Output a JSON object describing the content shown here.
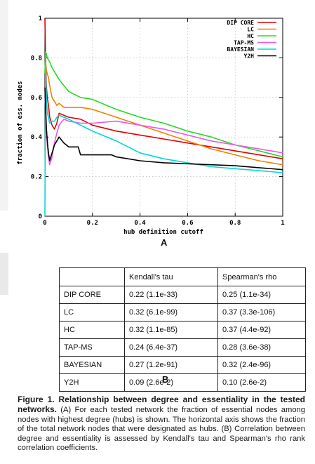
{
  "chart_data": {
    "type": "line",
    "title": "",
    "xlabel": "hub definition cutoff",
    "ylabel": "fraction of ess. nodes",
    "xlim": [
      0,
      1
    ],
    "ylim": [
      0,
      1
    ],
    "xticks": [
      "0",
      "0.2",
      "0.4",
      "0.6",
      "0.8",
      "1"
    ],
    "yticks": [
      "0",
      "0.2",
      "0.4",
      "0.6",
      "0.8",
      "1"
    ],
    "grid": true,
    "legend_position": "top-right",
    "series": [
      {
        "name": "DIP CORE",
        "color": "#e00000",
        "x": [
          0,
          0.003,
          0.006,
          0.01,
          0.015,
          0.02,
          0.03,
          0.04,
          0.05,
          0.06,
          0.08,
          0.1,
          0.15,
          0.2,
          0.3,
          0.4,
          0.5,
          0.6,
          0.7,
          0.8,
          0.9,
          1.0
        ],
        "y": [
          1.0,
          0.8,
          0.66,
          0.6,
          0.56,
          0.5,
          0.46,
          0.44,
          0.47,
          0.52,
          0.51,
          0.5,
          0.49,
          0.46,
          0.43,
          0.41,
          0.39,
          0.37,
          0.35,
          0.33,
          0.31,
          0.29
        ]
      },
      {
        "name": "LC",
        "color": "#f08000",
        "x": [
          0,
          0.003,
          0.006,
          0.01,
          0.015,
          0.02,
          0.03,
          0.04,
          0.05,
          0.06,
          0.08,
          0.1,
          0.15,
          0.2,
          0.3,
          0.4,
          0.5,
          0.6,
          0.7,
          0.8,
          0.9,
          1.0
        ],
        "y": [
          0.72,
          0.78,
          0.74,
          0.72,
          0.7,
          0.66,
          0.6,
          0.58,
          0.56,
          0.57,
          0.55,
          0.55,
          0.55,
          0.54,
          0.5,
          0.46,
          0.42,
          0.38,
          0.34,
          0.31,
          0.28,
          0.26
        ]
      },
      {
        "name": "HC",
        "color": "#22dd22",
        "x": [
          0,
          0.003,
          0.006,
          0.01,
          0.015,
          0.02,
          0.03,
          0.04,
          0.05,
          0.06,
          0.08,
          0.1,
          0.15,
          0.2,
          0.3,
          0.4,
          0.5,
          0.6,
          0.7,
          0.8,
          0.9,
          1.0
        ],
        "y": [
          0.72,
          0.83,
          0.82,
          0.8,
          0.79,
          0.78,
          0.75,
          0.73,
          0.71,
          0.69,
          0.66,
          0.63,
          0.6,
          0.59,
          0.54,
          0.5,
          0.47,
          0.43,
          0.4,
          0.36,
          0.33,
          0.3
        ]
      },
      {
        "name": "TAP-MS",
        "color": "#ee55ee",
        "x": [
          0,
          0.003,
          0.006,
          0.01,
          0.015,
          0.02,
          0.03,
          0.04,
          0.05,
          0.06,
          0.08,
          0.1,
          0.15,
          0.2,
          0.3,
          0.4,
          0.5,
          0.6,
          0.7,
          0.8,
          0.9,
          1.0
        ],
        "y": [
          0.6,
          0.55,
          0.45,
          0.36,
          0.3,
          0.26,
          0.3,
          0.37,
          0.42,
          0.46,
          0.49,
          0.48,
          0.47,
          0.47,
          0.48,
          0.46,
          0.44,
          0.41,
          0.38,
          0.36,
          0.34,
          0.32
        ]
      },
      {
        "name": "BAYESIAN",
        "color": "#00d8d8",
        "x": [
          0,
          0.003,
          0.006,
          0.01,
          0.015,
          0.02,
          0.03,
          0.04,
          0.05,
          0.06,
          0.08,
          0.1,
          0.15,
          0.2,
          0.3,
          0.4,
          0.5,
          0.6,
          0.7,
          0.8,
          0.9,
          1.0
        ],
        "y": [
          0.0,
          0.76,
          0.6,
          0.52,
          0.5,
          0.47,
          0.48,
          0.48,
          0.5,
          0.51,
          0.5,
          0.49,
          0.46,
          0.43,
          0.38,
          0.32,
          0.29,
          0.27,
          0.25,
          0.24,
          0.23,
          0.22
        ]
      },
      {
        "name": "Y2H",
        "color": "#000000",
        "x": [
          0,
          0.003,
          0.006,
          0.01,
          0.015,
          0.02,
          0.03,
          0.04,
          0.05,
          0.06,
          0.08,
          0.1,
          0.14,
          0.15,
          0.2,
          0.28,
          0.3,
          0.4,
          0.5,
          0.6,
          0.7,
          0.8,
          0.9,
          1.0
        ],
        "y": [
          0.65,
          0.55,
          0.45,
          0.38,
          0.32,
          0.28,
          0.32,
          0.36,
          0.38,
          0.4,
          0.37,
          0.35,
          0.35,
          0.31,
          0.31,
          0.31,
          0.3,
          0.28,
          0.27,
          0.265,
          0.26,
          0.255,
          0.245,
          0.235
        ]
      }
    ]
  },
  "panel_a_label": "A",
  "panel_b_label": "B",
  "table": {
    "headers": [
      "",
      "Kendall's tau",
      "Spearman's rho"
    ],
    "rows": [
      [
        "DIP CORE",
        "0.22 (1.1e-33)",
        "0.25 (1.1e-34)"
      ],
      [
        "LC",
        "0.32 (6.1e-99)",
        "0.37 (3.3e-106)"
      ],
      [
        "HC",
        "0.32 (1.1e-85)",
        "0.37 (4.4e-92)"
      ],
      [
        "TAP-MS",
        "0.24 (6.4e-37)",
        "0.28 (3.6e-38)"
      ],
      [
        "BAYESIAN",
        "0.27 (1.2e-91)",
        "0.32 (2.4e-96)"
      ],
      [
        "Y2H",
        "0.09 (2.6e-2)",
        "0.10 (2.6e-2)"
      ]
    ]
  },
  "caption": {
    "title": "Figure 1. Relationship between degree and essentiality in the tested networks.",
    "body": " (A) For each tested network the fraction of essential nodes among nodes with highest degree (hubs) is shown. The horizontal axis shows the fraction of the total network nodes that were designated as hubs. (B) Correlation between degree and essentiality is assessed by Kendall's tau and Spearman's rho rank correlation coefficients."
  }
}
